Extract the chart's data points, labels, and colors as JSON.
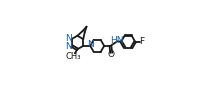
{
  "background_color": "#ffffff",
  "figsize": [
    2.16,
    0.85
  ],
  "dpi": 100,
  "line_color": "#1a1a1a",
  "line_width": 1.3,
  "font_size": 6.5,
  "N_color": "#1a5fa8",
  "C_color": "#1a1a1a",
  "xlim": [
    -0.05,
    1.08
  ],
  "ylim": [
    0.0,
    1.0
  ]
}
